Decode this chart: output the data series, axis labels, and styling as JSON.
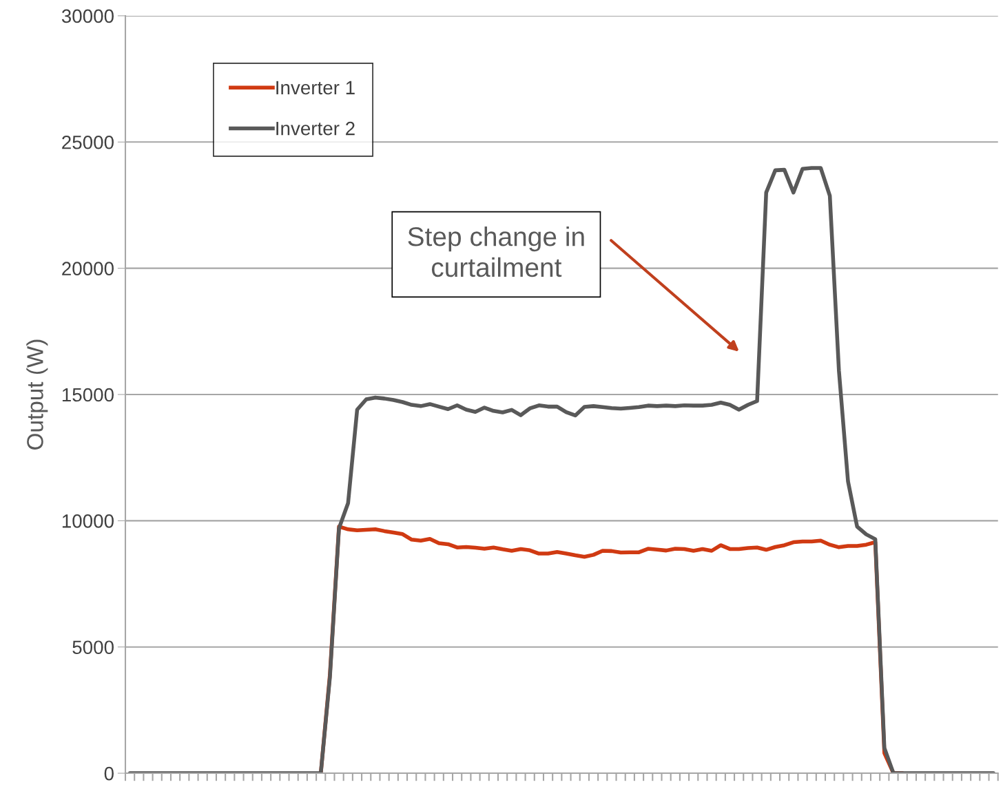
{
  "chart_data": {
    "type": "line",
    "ylabel": "Output (W)",
    "categories": [
      null,
      null,
      null,
      null,
      null,
      null,
      null,
      null,
      null,
      null,
      null,
      null,
      null,
      null,
      null,
      null,
      null,
      null,
      null,
      null,
      null,
      null,
      null,
      null,
      null,
      null,
      null,
      null,
      null,
      null,
      null,
      null,
      null,
      null,
      null,
      null,
      null,
      null,
      null,
      null,
      null,
      null,
      null,
      null,
      null,
      null,
      null,
      null,
      null,
      null,
      null,
      null,
      null,
      null,
      null,
      null,
      null,
      null,
      null,
      null,
      null,
      null,
      null,
      null,
      null,
      null,
      null,
      null,
      null,
      null,
      null,
      null,
      null,
      null,
      null,
      null,
      null,
      null,
      null,
      null,
      null,
      null,
      null,
      null,
      null,
      null,
      null,
      null,
      null,
      null,
      null,
      null,
      null,
      null,
      null,
      null
    ],
    "series": [
      {
        "name": "Inverter 1",
        "color": "#d03a12",
        "values": [
          null,
          null,
          null,
          null,
          null,
          null,
          null,
          null,
          null,
          null,
          null,
          null,
          null,
          null,
          null,
          null,
          null,
          null,
          null,
          null,
          null,
          0,
          3900,
          9770,
          9660,
          9620,
          9640,
          9660,
          9590,
          9530,
          9470,
          9250,
          9210,
          9280,
          9110,
          9070,
          8940,
          8960,
          8930,
          8890,
          8940,
          8870,
          8810,
          8880,
          8830,
          8700,
          8700,
          8760,
          8700,
          8630,
          8570,
          8650,
          8810,
          8800,
          8740,
          8750,
          8750,
          8890,
          8860,
          8820,
          8890,
          8880,
          8810,
          8880,
          8810,
          9030,
          8880,
          8880,
          8920,
          8940,
          8850,
          8960,
          9030,
          9150,
          9180,
          9180,
          9210,
          9050,
          8950,
          9000,
          9000,
          9050,
          9150,
          800,
          0,
          0,
          null,
          null,
          null,
          null,
          null,
          null,
          null,
          null,
          null,
          null
        ]
      },
      {
        "name": "Inverter 2",
        "color": "#595959",
        "values": [
          0,
          0,
          0,
          0,
          0,
          0,
          0,
          0,
          0,
          0,
          0,
          0,
          0,
          0,
          0,
          0,
          0,
          0,
          0,
          0,
          0,
          0,
          3800,
          9700,
          10700,
          14400,
          14810,
          14880,
          14840,
          14780,
          14700,
          14590,
          14540,
          14620,
          14520,
          14420,
          14570,
          14400,
          14310,
          14480,
          14350,
          14290,
          14390,
          14180,
          14450,
          14570,
          14520,
          14520,
          14300,
          14170,
          14510,
          14540,
          14500,
          14460,
          14440,
          14470,
          14500,
          14560,
          14540,
          14560,
          14540,
          14570,
          14560,
          14560,
          14590,
          14680,
          14590,
          14400,
          14590,
          14740,
          23000,
          23880,
          23900,
          23000,
          23940,
          23970,
          23970,
          22870,
          15950,
          11560,
          9770,
          9460,
          9270,
          1000,
          0,
          0,
          0,
          0,
          0,
          0,
          0,
          0,
          0,
          0,
          0,
          0
        ]
      }
    ],
    "ylim": [
      0,
      30000
    ],
    "yticks": [
      0,
      5000,
      10000,
      15000,
      20000,
      25000,
      30000
    ],
    "grid": "y",
    "legend": "top left",
    "tick_labels": "y",
    "marker": "none",
    "line_style": "solid",
    "annotations": [
      "Step change in\ncurtailment"
    ]
  }
}
